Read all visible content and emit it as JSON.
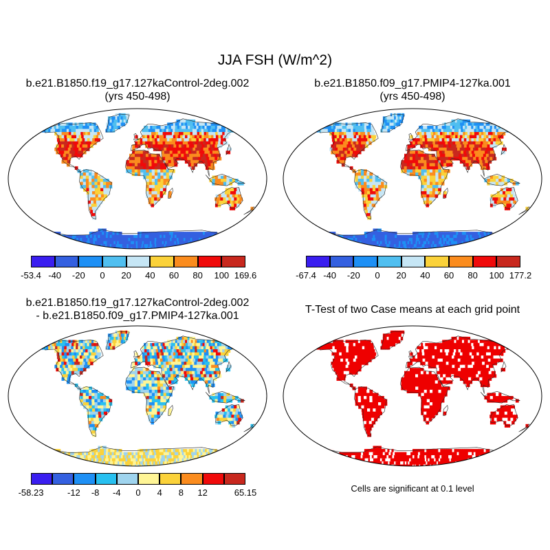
{
  "figure": {
    "title": "JJA FSH (W/m^2)",
    "significance_note": "Cells are significant at 0.1 level"
  },
  "panels": [
    {
      "id": "control",
      "title_line1": "b.e21.B1850.f19_g17.127kaControl-2deg.002",
      "title_line2": "(yrs 450-498)",
      "colorbar": {
        "colors": [
          "#3a1ef0",
          "#3460e0",
          "#1e90f5",
          "#50bff0",
          "#c6e6f5",
          "#fbd23a",
          "#fb8c1e",
          "#f00a0a",
          "#c8281e"
        ],
        "labels": [
          "-53.4",
          "-40",
          "-20",
          "0",
          "20",
          "40",
          "60",
          "80",
          "100",
          "169.6"
        ]
      }
    },
    {
      "id": "pmip4",
      "title_line1": "b.e21.B1850.f09_g17.PMIP4-127ka.001",
      "title_line2": "(yrs 450-498)",
      "colorbar": {
        "colors": [
          "#3a1ef0",
          "#3460e0",
          "#1e90f5",
          "#50bff0",
          "#c6e6f5",
          "#fbd23a",
          "#fb8c1e",
          "#f00a0a",
          "#c8281e"
        ],
        "labels": [
          "-67.4",
          "-40",
          "-20",
          "0",
          "20",
          "40",
          "60",
          "80",
          "100",
          "177.2"
        ]
      }
    },
    {
      "id": "difference",
      "title_line1": "b.e21.B1850.f19_g17.127kaControl-2deg.002",
      "title_line2": "- b.e21.B1850.f09_g17.PMIP4-127ka.001",
      "colorbar": {
        "colors": [
          "#3a1ef0",
          "#3460e0",
          "#1e90f5",
          "#28c0f0",
          "#9fd4ee",
          "#fff596",
          "#fbd23a",
          "#fb8c1e",
          "#f00a0a",
          "#c8281e"
        ],
        "labels": [
          "-58.23",
          "",
          "-12",
          "-8",
          "-4",
          "0",
          "4",
          "8",
          "12",
          "",
          "65.15"
        ]
      }
    },
    {
      "id": "ttest",
      "title_line1": "T-Test of two Case means at each grid point",
      "title_line2": "",
      "fill_color": "#ee0000"
    }
  ]
}
